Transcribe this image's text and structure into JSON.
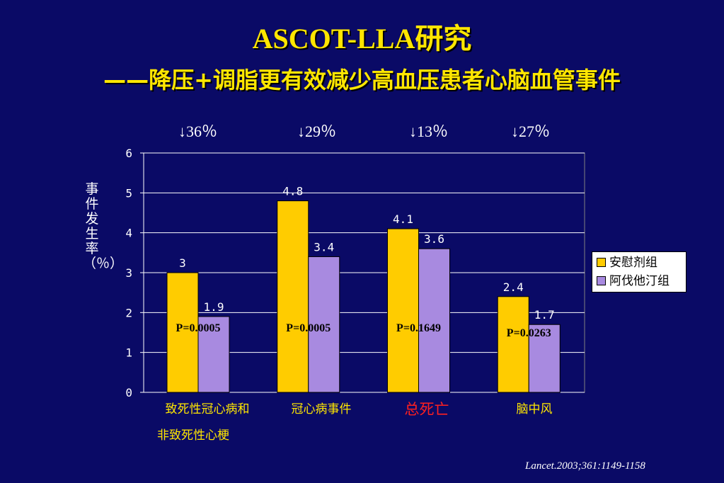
{
  "title": "ASCOT-LLA研究",
  "subtitle": "——降压+调脂更有效减少高血压患者心脑血管事件",
  "reductions": [
    "↓36％",
    "↓29％",
    "↓13％",
    "↓27％"
  ],
  "ylabel": "事件发生率（％）",
  "categories_line2": [
    "非致死性心梗"
  ],
  "source": "Lancet.2003;361:1149-1158",
  "legend": [
    "安慰剂组",
    "阿伐他汀组"
  ],
  "colors": {
    "placebo": "#ffcc00",
    "atorvastatin": "#a88ae0",
    "background": "#0a0a66",
    "title": "#ffe600",
    "highlight": "#ff2020"
  },
  "chart_data": {
    "type": "bar",
    "categories": [
      "致死性冠心病和",
      "冠心病事件",
      "总死亡",
      "脑中风"
    ],
    "highlight_category": "总死亡",
    "series": [
      {
        "name": "安慰剂组",
        "values": [
          3,
          4.8,
          4.1,
          2.4
        ],
        "labels": [
          "3",
          "4.8",
          "4.1",
          "2.4"
        ]
      },
      {
        "name": "阿伐他汀组",
        "values": [
          1.9,
          3.4,
          3.6,
          1.7
        ],
        "labels": [
          "1.9",
          "3.4",
          "3.6",
          "1.7"
        ]
      }
    ],
    "p_values": [
      "P=0.0005",
      "P=0.0005",
      "P=0.1649",
      "P=0.0263"
    ],
    "yticks": [
      "0",
      "1",
      "2",
      "3",
      "4",
      "5",
      "6"
    ],
    "ylim": [
      0,
      6
    ],
    "grid": true,
    "legend_position": "right"
  }
}
